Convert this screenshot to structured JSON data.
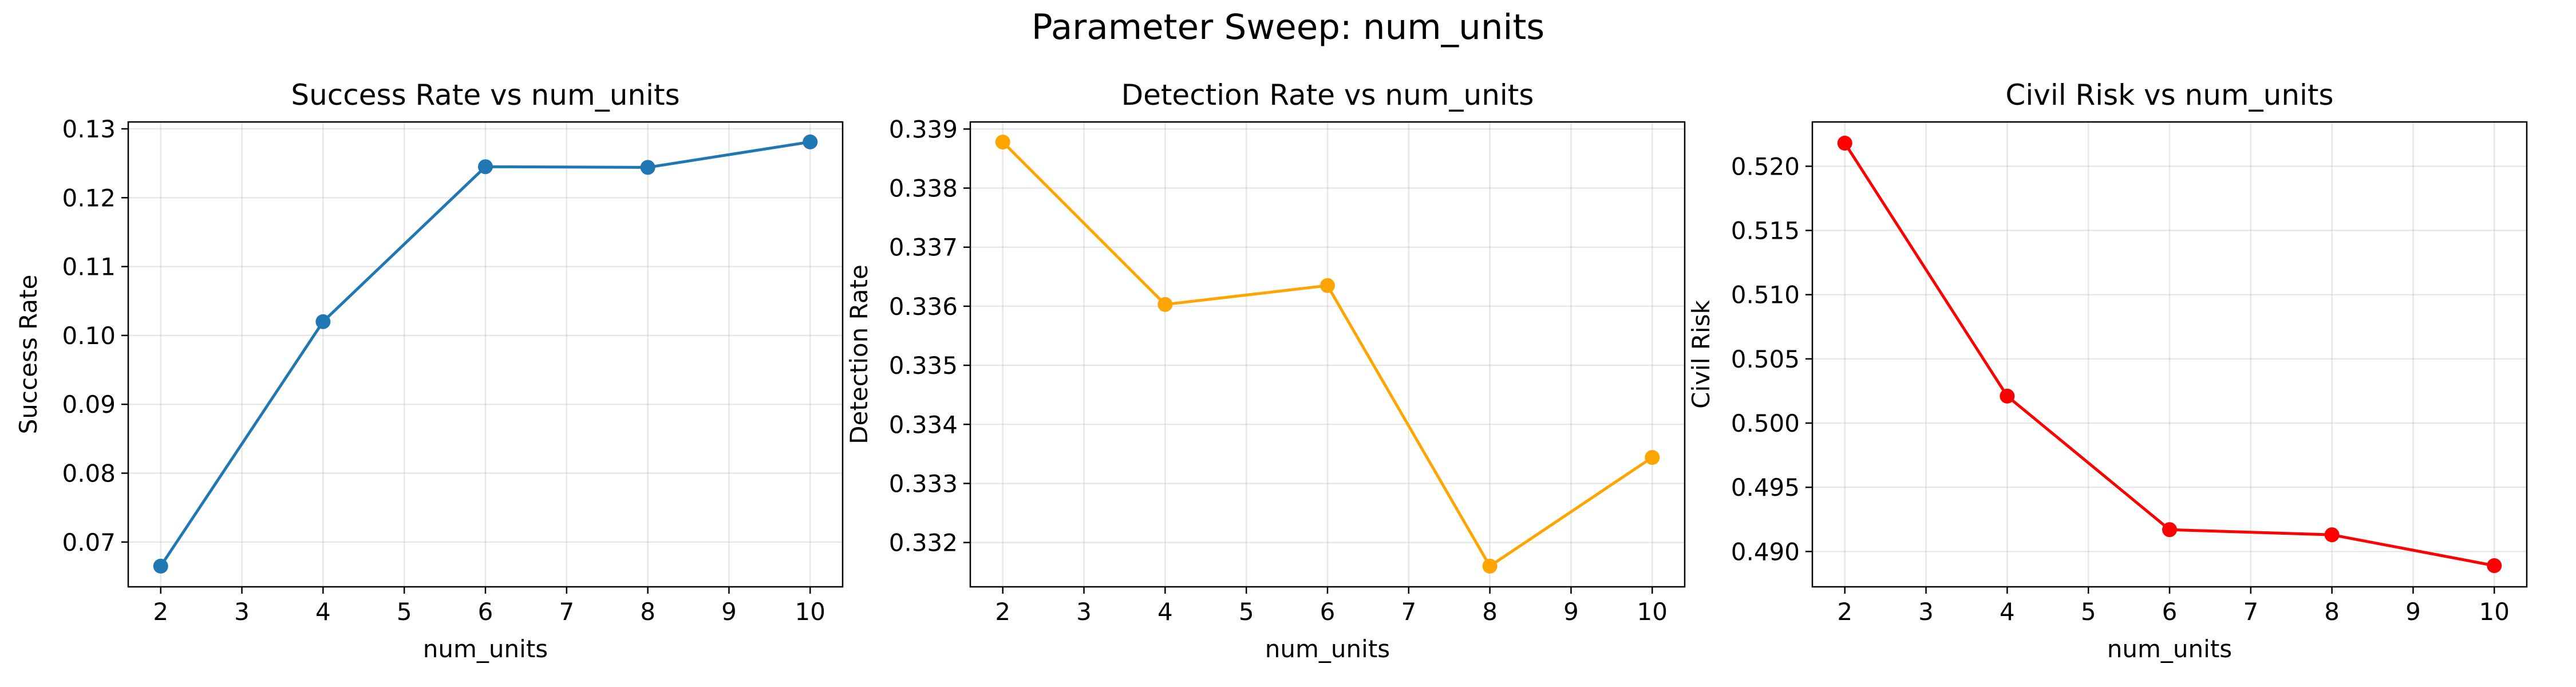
{
  "figure": {
    "suptitle": "Parameter Sweep: num_units"
  },
  "chart_data": [
    {
      "type": "line",
      "title": "Success Rate vs num_units",
      "xlabel": "num_units",
      "ylabel": "Success Rate",
      "x": [
        2,
        4,
        6,
        8,
        10
      ],
      "series": [
        {
          "values": [
            0.0665,
            0.102,
            0.1245,
            0.1244,
            0.1281
          ],
          "color": "#1f77b4"
        }
      ],
      "xlim": [
        1.6,
        10.4
      ],
      "ylim": [
        0.0635,
        0.131
      ],
      "xticks": [
        2,
        3,
        4,
        5,
        6,
        7,
        8,
        9,
        10
      ],
      "yticks": [
        0.07,
        0.08,
        0.09,
        0.1,
        0.11,
        0.12,
        0.13
      ],
      "ytick_labels": [
        "0.07",
        "0.08",
        "0.09",
        "0.10",
        "0.11",
        "0.12",
        "0.13"
      ],
      "grid": true,
      "marker": "circle"
    },
    {
      "type": "line",
      "title": "Detection Rate vs num_units",
      "xlabel": "num_units",
      "ylabel": "Detection Rate",
      "x": [
        2,
        4,
        6,
        8,
        10
      ],
      "series": [
        {
          "values": [
            0.33878,
            0.33603,
            0.33635,
            0.3316,
            0.33344
          ],
          "color": "#ffa500"
        }
      ],
      "xlim": [
        1.6,
        10.4
      ],
      "ylim": [
        0.33125,
        0.33912
      ],
      "xticks": [
        2,
        3,
        4,
        5,
        6,
        7,
        8,
        9,
        10
      ],
      "yticks": [
        0.332,
        0.333,
        0.334,
        0.335,
        0.336,
        0.337,
        0.338,
        0.339
      ],
      "ytick_labels": [
        "0.332",
        "0.333",
        "0.334",
        "0.335",
        "0.336",
        "0.337",
        "0.338",
        "0.339"
      ],
      "grid": true,
      "marker": "circle"
    },
    {
      "type": "line",
      "title": "Civil Risk vs num_units",
      "xlabel": "num_units",
      "ylabel": "Civil Risk",
      "x": [
        2,
        4,
        6,
        8,
        10
      ],
      "series": [
        {
          "values": [
            0.5218,
            0.5021,
            0.4917,
            0.4913,
            0.4889
          ],
          "color": "#ff0000"
        }
      ],
      "xlim": [
        1.6,
        10.4
      ],
      "ylim": [
        0.48725,
        0.52345
      ],
      "xticks": [
        2,
        3,
        4,
        5,
        6,
        7,
        8,
        9,
        10
      ],
      "yticks": [
        0.49,
        0.495,
        0.5,
        0.505,
        0.51,
        0.515,
        0.52
      ],
      "ytick_labels": [
        "0.490",
        "0.495",
        "0.500",
        "0.505",
        "0.510",
        "0.515",
        "0.520"
      ],
      "grid": true,
      "marker": "circle"
    }
  ]
}
